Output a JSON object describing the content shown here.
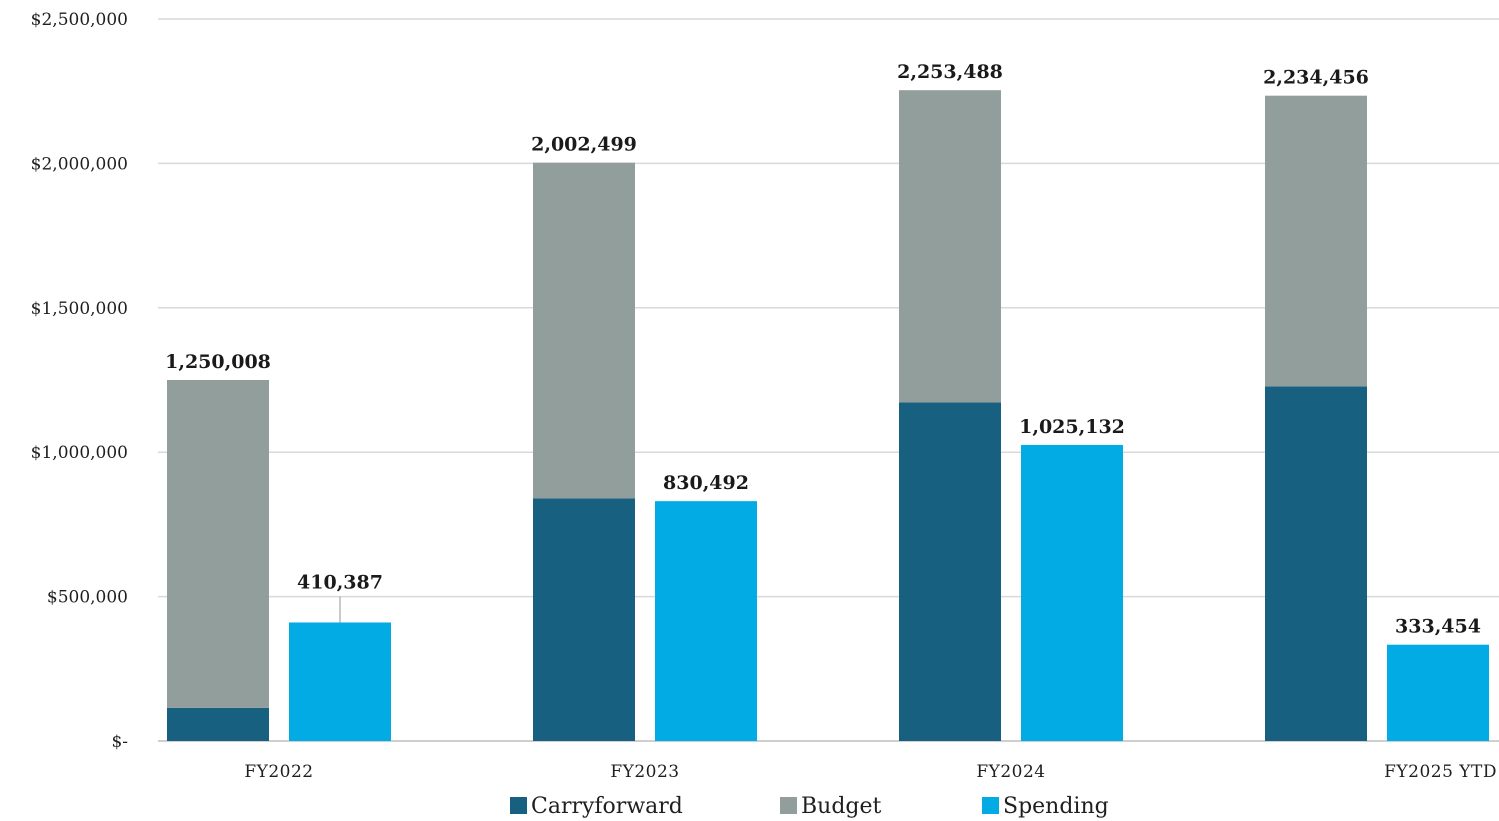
{
  "chart_data": {
    "type": "bar",
    "stacked_group": [
      "carryforward",
      "budget"
    ],
    "categories": [
      "FY2022",
      "FY2023",
      "FY2024",
      "FY2025 YTD"
    ],
    "series": [
      {
        "key": "carryforward",
        "name": "Carryforward",
        "color": "#17607f",
        "values": [
          115000,
          840000,
          1172000,
          1228000
        ]
      },
      {
        "key": "budget",
        "name": "Budget",
        "color": "#929e9c",
        "values": [
          1135008,
          1162499,
          1081488,
          1006456
        ]
      },
      {
        "key": "spending",
        "name": "Spending",
        "color": "#02abe3",
        "values": [
          410387,
          830492,
          1025132,
          333454
        ]
      }
    ],
    "stack_totals": [
      1250008,
      2002499,
      2253488,
      2234456
    ],
    "stack_total_labels": [
      "1,250,008",
      "2,002,499",
      "2,253,488",
      "2,234,456"
    ],
    "spending_labels": [
      "410,387",
      "830,492",
      "1,025,132",
      "333,454"
    ],
    "ylim": [
      0,
      2500000
    ],
    "yticks": [
      0,
      500000,
      1000000,
      1500000,
      2000000,
      2500000
    ],
    "ytick_labels": [
      "$-",
      "$500,000",
      "$1,000,000",
      "$1,500,000",
      "$2,000,000",
      "$2,500,000"
    ],
    "grid": true,
    "legend_position": "bottom",
    "title": "",
    "xlabel": "",
    "ylabel": ""
  }
}
